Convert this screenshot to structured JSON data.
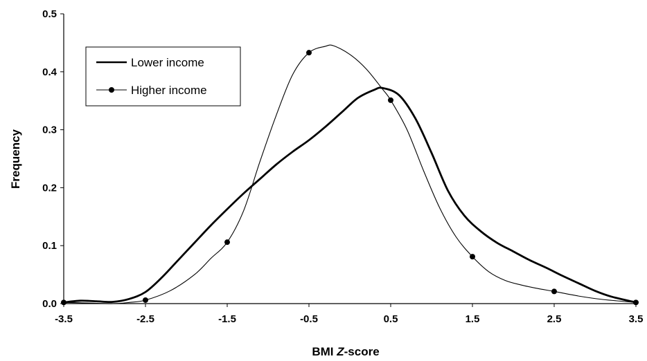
{
  "chart_data": {
    "type": "line",
    "title": "",
    "xlabel_prefix": "BMI ",
    "xlabel_italic": "Z",
    "xlabel_suffix": "-score",
    "ylabel": "Frequency",
    "xlim": [
      -3.5,
      3.5
    ],
    "ylim": [
      0,
      0.5
    ],
    "x_ticks": [
      "-3.5",
      "-2.5",
      "-1.5",
      "-0.5",
      "0.5",
      "1.5",
      "2.5",
      "3.5"
    ],
    "y_ticks": [
      "0.0",
      "0.1",
      "0.2",
      "0.3",
      "0.4",
      "0.5"
    ],
    "grid": false,
    "legend_position": "top-left",
    "series": [
      {
        "name": "Lower income",
        "color": "#000000",
        "line": "thick",
        "marker": "none",
        "points": [
          [
            -3.5,
            0.002
          ],
          [
            -3.3,
            0.005
          ],
          [
            -3.1,
            0.004
          ],
          [
            -2.9,
            0.003
          ],
          [
            -2.7,
            0.008
          ],
          [
            -2.5,
            0.02
          ],
          [
            -2.3,
            0.045
          ],
          [
            -2.1,
            0.075
          ],
          [
            -1.9,
            0.105
          ],
          [
            -1.7,
            0.135
          ],
          [
            -1.5,
            0.163
          ],
          [
            -1.3,
            0.19
          ],
          [
            -1.1,
            0.215
          ],
          [
            -0.9,
            0.24
          ],
          [
            -0.7,
            0.262
          ],
          [
            -0.5,
            0.282
          ],
          [
            -0.3,
            0.305
          ],
          [
            -0.1,
            0.33
          ],
          [
            0.1,
            0.355
          ],
          [
            0.3,
            0.369
          ],
          [
            0.4,
            0.372
          ],
          [
            0.6,
            0.36
          ],
          [
            0.8,
            0.32
          ],
          [
            1.0,
            0.26
          ],
          [
            1.2,
            0.195
          ],
          [
            1.4,
            0.152
          ],
          [
            1.6,
            0.125
          ],
          [
            1.8,
            0.105
          ],
          [
            2.0,
            0.09
          ],
          [
            2.2,
            0.075
          ],
          [
            2.4,
            0.062
          ],
          [
            2.6,
            0.048
          ],
          [
            2.8,
            0.035
          ],
          [
            3.0,
            0.022
          ],
          [
            3.2,
            0.012
          ],
          [
            3.5,
            0.002
          ]
        ]
      },
      {
        "name": "Higher income",
        "color": "#000000",
        "line": "thin",
        "marker": "circle",
        "markers": [
          [
            -3.5,
            0.002
          ],
          [
            -2.5,
            0.006
          ],
          [
            -1.5,
            0.106
          ],
          [
            -0.5,
            0.433
          ],
          [
            0.5,
            0.351
          ],
          [
            1.5,
            0.081
          ],
          [
            2.5,
            0.021
          ],
          [
            3.5,
            0.002
          ]
        ],
        "points": [
          [
            -3.5,
            0.002
          ],
          [
            -3.2,
            0.001
          ],
          [
            -2.9,
            0.0
          ],
          [
            -2.7,
            0.002
          ],
          [
            -2.5,
            0.006
          ],
          [
            -2.2,
            0.022
          ],
          [
            -1.9,
            0.05
          ],
          [
            -1.7,
            0.078
          ],
          [
            -1.5,
            0.106
          ],
          [
            -1.3,
            0.16
          ],
          [
            -1.1,
            0.245
          ],
          [
            -0.9,
            0.325
          ],
          [
            -0.7,
            0.395
          ],
          [
            -0.5,
            0.433
          ],
          [
            -0.3,
            0.444
          ],
          [
            -0.2,
            0.445
          ],
          [
            0.0,
            0.43
          ],
          [
            0.2,
            0.405
          ],
          [
            0.4,
            0.37
          ],
          [
            0.5,
            0.351
          ],
          [
            0.7,
            0.3
          ],
          [
            0.9,
            0.23
          ],
          [
            1.1,
            0.165
          ],
          [
            1.3,
            0.115
          ],
          [
            1.5,
            0.081
          ],
          [
            1.7,
            0.055
          ],
          [
            1.9,
            0.04
          ],
          [
            2.1,
            0.032
          ],
          [
            2.3,
            0.026
          ],
          [
            2.5,
            0.021
          ],
          [
            2.8,
            0.013
          ],
          [
            3.1,
            0.007
          ],
          [
            3.5,
            0.002
          ]
        ]
      }
    ]
  }
}
